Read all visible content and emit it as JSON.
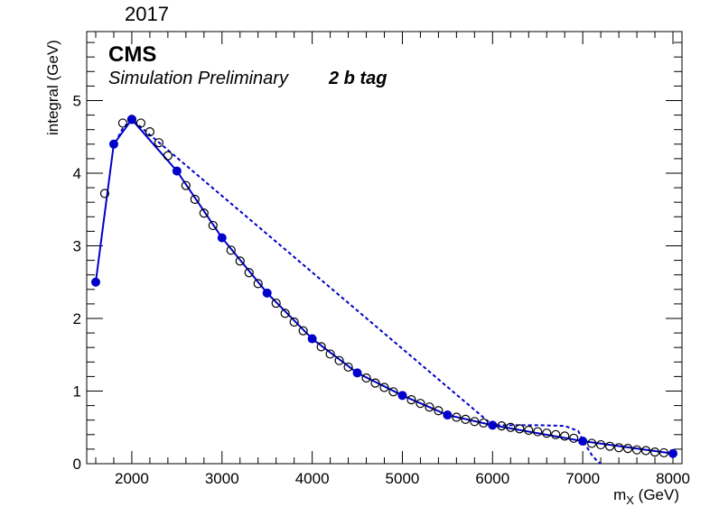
{
  "header": {
    "year": "2017"
  },
  "labels": {
    "experiment": "CMS",
    "status": "Simulation Preliminary",
    "category": "2 b tag"
  },
  "chart_data": {
    "type": "line",
    "title": "",
    "xlabel_main": "m",
    "xlabel_sub": "X",
    "xlabel_unit": " (GeV)",
    "ylabel": "integral (GeV)",
    "xlim": [
      1500,
      8100
    ],
    "ylim": [
      0,
      5.95
    ],
    "xticks": [
      2000,
      3000,
      4000,
      5000,
      6000,
      7000,
      8000
    ],
    "yticks": [
      0,
      1,
      2,
      3,
      4,
      5
    ],
    "grid": false,
    "colors": {
      "filled": "#0000cc",
      "line": "#0000cc",
      "open": "#000000"
    },
    "series": [
      {
        "marker": "filled-circle",
        "line": "solid",
        "x": [
          1600,
          1800,
          2000,
          2500,
          3000,
          3500,
          4000,
          4500,
          5000,
          5500,
          6000,
          7000,
          8000
        ],
        "y": [
          2.5,
          4.4,
          4.74,
          4.03,
          3.11,
          2.35,
          1.72,
          1.25,
          0.94,
          0.67,
          0.53,
          0.31,
          0.14
        ]
      },
      {
        "marker": "open-circle",
        "line": "none",
        "x": [
          1700,
          1900,
          2000,
          2100,
          2200,
          2300,
          2400,
          2600,
          2700,
          2800,
          2900,
          3100,
          3200,
          3300,
          3400,
          3600,
          3700,
          3800,
          3900,
          4100,
          4200,
          4300,
          4400,
          4600,
          4700,
          4800,
          4900,
          5100,
          5200,
          5300,
          5400,
          5600,
          5700,
          5800,
          5900,
          6100,
          6200,
          6300,
          6400,
          6500,
          6600,
          6700,
          6800,
          6900,
          7100,
          7200,
          7300,
          7400,
          7500,
          7600,
          7700,
          7800,
          7900
        ],
        "y": [
          3.72,
          4.69,
          4.74,
          4.69,
          4.57,
          4.42,
          4.24,
          3.83,
          3.64,
          3.45,
          3.28,
          2.94,
          2.79,
          2.63,
          2.48,
          2.21,
          2.07,
          1.95,
          1.83,
          1.61,
          1.51,
          1.42,
          1.33,
          1.18,
          1.11,
          1.05,
          0.99,
          0.88,
          0.83,
          0.78,
          0.73,
          0.64,
          0.61,
          0.58,
          0.56,
          0.52,
          0.5,
          0.48,
          0.46,
          0.44,
          0.42,
          0.4,
          0.38,
          0.35,
          0.28,
          0.26,
          0.24,
          0.22,
          0.21,
          0.19,
          0.18,
          0.16,
          0.15
        ]
      },
      {
        "marker": "none",
        "line": "dashed",
        "x": [
          1850,
          1900,
          2000,
          6000,
          6500,
          6800,
          6950,
          7000,
          7050,
          7100,
          7150,
          7200
        ],
        "y": [
          4.5,
          4.62,
          4.74,
          0.53,
          0.53,
          0.52,
          0.45,
          0.33,
          0.22,
          0.12,
          0.05,
          0.0
        ]
      }
    ]
  }
}
